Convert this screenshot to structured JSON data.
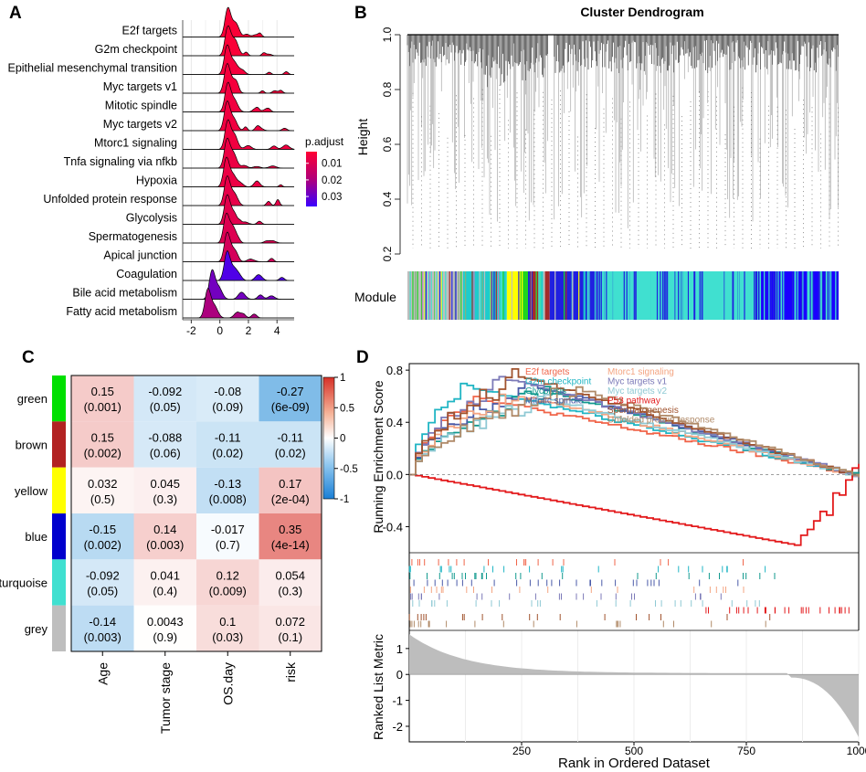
{
  "panels": {
    "a": {
      "label": "A",
      "chart_data": {
        "type": "ridgeline",
        "categories": [
          "E2f targets",
          "G2m checkpoint",
          "Epithelial mesenchymal transition",
          "Myc targets v1",
          "Mitotic spindle",
          "Myc targets v2",
          "Mtorc1 signaling",
          "Tnfa signaling via nfkb",
          "Hypoxia",
          "Unfolded protein response",
          "Glycolysis",
          "Spermatogenesis",
          "Apical junction",
          "Coagulation",
          "Bile acid metabolism",
          "Fatty acid metabolism"
        ],
        "peaks": [
          0.55,
          0.55,
          0.5,
          0.5,
          0.55,
          0.5,
          0.55,
          0.5,
          0.45,
          0.5,
          0.5,
          0.45,
          0.5,
          0.5,
          -0.55,
          -0.85
        ],
        "p_adjust": [
          0.004,
          0.004,
          0.005,
          0.005,
          0.006,
          0.006,
          0.006,
          0.007,
          0.007,
          0.008,
          0.009,
          0.01,
          0.012,
          0.033,
          0.028,
          0.02
        ],
        "x_ticks": [
          "-2",
          "0",
          "2",
          "4"
        ],
        "x_tick_values": [
          -2,
          0,
          2,
          4
        ],
        "xlim": [
          -2.6,
          5.2
        ],
        "legend": {
          "title": "p.adjust",
          "ticks": [
            "0.01",
            "0.02",
            "0.03"
          ],
          "tick_values": [
            0.01,
            0.02,
            0.03
          ],
          "range": [
            0.003,
            0.036
          ],
          "colors": [
            "#ff0033",
            "#b0007a",
            "#3a00ff"
          ]
        }
      }
    },
    "b": {
      "label": "B",
      "chart_data": {
        "type": "dendrogram",
        "title": "Cluster Dendrogram",
        "ylabel": "Height",
        "y_ticks": [
          "0.2",
          "0.4",
          "0.6",
          "0.8",
          "1.0"
        ],
        "y_tick_values": [
          0.2,
          0.4,
          0.6,
          0.8,
          1.0
        ],
        "ylim": [
          0.16,
          1.02
        ],
        "module_label": "Module",
        "module_segments": [
          {
            "module": "grey",
            "color": "#bebebe",
            "share": 0.13
          },
          {
            "module": "mixed",
            "color": "#1ecccc",
            "share": 0.1
          },
          {
            "module": "yellow",
            "color": "#ffff00",
            "share": 0.04
          },
          {
            "module": "green",
            "color": "#1fd51f",
            "share": 0.015
          },
          {
            "module": "brown",
            "color": "#a52a2a",
            "share": 0.045
          },
          {
            "module": "blue",
            "color": "#2020e0",
            "share": 0.11
          },
          {
            "module": "turquoise",
            "color": "#40e0d0",
            "share": 0.38
          },
          {
            "module": "blue",
            "color": "#1a00ff",
            "share": 0.18
          }
        ]
      }
    },
    "c": {
      "label": "C",
      "chart_data": {
        "type": "heatmap",
        "rows": [
          "green",
          "brown",
          "yellow",
          "blue",
          "turquoise",
          "grey"
        ],
        "row_colors": [
          "#00e000",
          "#b22222",
          "#ffff00",
          "#0000cd",
          "#40e0d0",
          "#bebebe"
        ],
        "columns": [
          "Age",
          "Tumor stage",
          "OS.day",
          "risk"
        ],
        "correlations": [
          [
            0.15,
            -0.092,
            -0.08,
            -0.27
          ],
          [
            0.15,
            -0.088,
            -0.11,
            -0.11
          ],
          [
            0.032,
            0.045,
            -0.13,
            0.17
          ],
          [
            -0.15,
            0.14,
            -0.017,
            0.35
          ],
          [
            -0.092,
            0.041,
            0.12,
            0.054
          ],
          [
            -0.14,
            0.0043,
            0.1,
            0.072
          ]
        ],
        "cell_text": [
          [
            "0.15",
            "-0.092",
            "-0.08",
            "-0.27"
          ],
          [
            "0.15",
            "-0.088",
            "-0.11",
            "-0.11"
          ],
          [
            "0.032",
            "0.045",
            "-0.13",
            "0.17"
          ],
          [
            "-0.15",
            "0.14",
            "-0.017",
            "0.35"
          ],
          [
            "-0.092",
            "0.041",
            "0.12",
            "0.054"
          ],
          [
            "-0.14",
            "0.0043",
            "0.1",
            "0.072"
          ]
        ],
        "cell_pvalues": [
          [
            "(0.001)",
            "(0.05)",
            "(0.09)",
            "(6e-09)"
          ],
          [
            "(0.002)",
            "(0.06)",
            "(0.02)",
            "(0.02)"
          ],
          [
            "(0.5)",
            "(0.3)",
            "(0.008)",
            "(2e-04)"
          ],
          [
            "(0.002)",
            "(0.003)",
            "(0.7)",
            "(4e-14)"
          ],
          [
            "(0.05)",
            "(0.4)",
            "(0.009)",
            "(0.3)"
          ],
          [
            "(0.003)",
            "(0.9)",
            "(0.03)",
            "(0.1)"
          ]
        ],
        "colorbar": {
          "ticks": [
            "1",
            "0.5",
            "0",
            "-0.5",
            "-1"
          ],
          "tick_values": [
            1,
            0.5,
            0,
            -0.5,
            -1
          ],
          "range": [
            -1,
            1
          ]
        }
      }
    },
    "d": {
      "label": "D",
      "chart_data": {
        "type": "gsea",
        "ylabel_top": "Running Enrichment Score",
        "ylabel_bottom": "Ranked List Metric",
        "xlabel": "Rank in Ordered Dataset",
        "x_ticks": [
          "250",
          "500",
          "750",
          "1000"
        ],
        "x_tick_values": [
          250,
          500,
          750,
          1000
        ],
        "xlim": [
          0,
          1000
        ],
        "es_y_ticks": [
          "0.8",
          "0.4",
          "0.0",
          "-0.4"
        ],
        "es_y_tick_values": [
          0.8,
          0.4,
          0.0,
          -0.4
        ],
        "es_ylim": [
          -0.6,
          0.85
        ],
        "metric_y_ticks": [
          "1",
          "0",
          "-1",
          "-2"
        ],
        "metric_y_tick_values": [
          1,
          0,
          -1,
          -2
        ],
        "metric_ylim": [
          -2.6,
          1.7
        ],
        "series": [
          {
            "name": "E2f targets",
            "color": "#f0654a",
            "peak_x": 130,
            "peak_y": 0.6
          },
          {
            "name": "G2m checkpoint",
            "color": "#20b5c4",
            "peak_x": 115,
            "peak_y": 0.68
          },
          {
            "name": "Glycolysis",
            "color": "#11998e",
            "peak_x": 300,
            "peak_y": 0.64
          },
          {
            "name": "Mitotic spindle",
            "color": "#4a5aa8",
            "peak_x": 255,
            "peak_y": 0.7
          },
          {
            "name": "Mtorc1 signaling",
            "color": "#f4a582",
            "peak_x": 230,
            "peak_y": 0.62
          },
          {
            "name": "Myc targets v1",
            "color": "#7c7ab8",
            "peak_x": 210,
            "peak_y": 0.74
          },
          {
            "name": "Myc targets v2",
            "color": "#8fc9d4",
            "peak_x": 300,
            "peak_y": 0.58
          },
          {
            "name": "P53 pathway",
            "color": "#e31a1c",
            "peak_x": 870,
            "peak_y": -0.55
          },
          {
            "name": "Spermatogenesis",
            "color": "#a0522d",
            "peak_x": 240,
            "peak_y": 0.76
          },
          {
            "name": "Unfolded protein response",
            "color": "#b08a68",
            "peak_x": 370,
            "peak_y": 0.66
          }
        ]
      }
    }
  }
}
